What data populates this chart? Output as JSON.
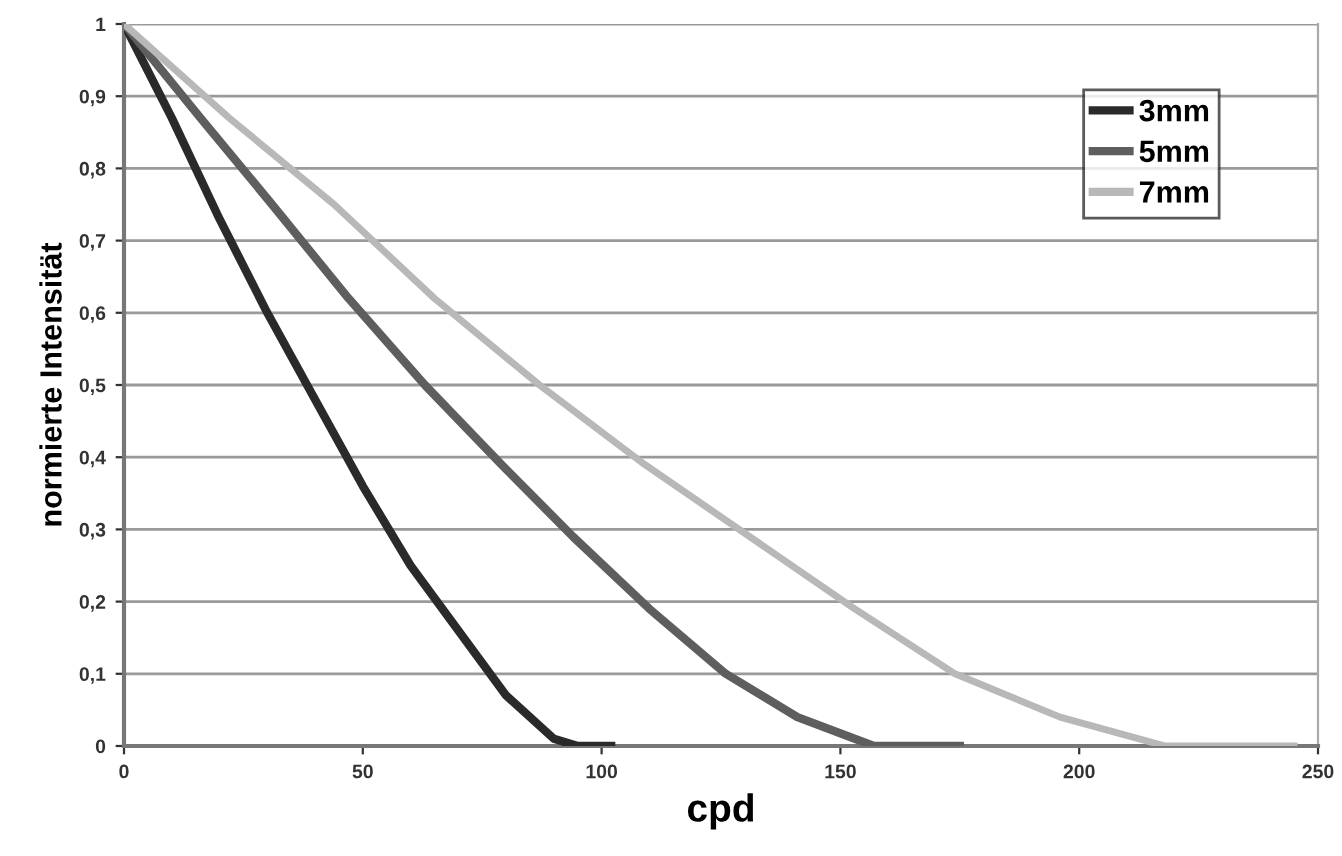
{
  "chart_data": {
    "type": "line",
    "xlabel": "cpd",
    "ylabel": "normierte Intensität",
    "xlim": [
      0,
      250
    ],
    "xticks": [
      0,
      50,
      100,
      150,
      200,
      250
    ],
    "ylim": [
      0,
      1
    ],
    "yticks": [
      0,
      {
        "value": 0.1,
        "label": "0,1"
      },
      {
        "value": 0.2,
        "label": "0,2"
      },
      {
        "value": 0.3,
        "label": "0,3"
      },
      {
        "value": 0.4,
        "label": "0,4"
      },
      {
        "value": 0.5,
        "label": "0,5"
      },
      {
        "value": 0.6,
        "label": "0,6"
      },
      {
        "value": 0.7,
        "label": "0,7"
      },
      {
        "value": 0.8,
        "label": "0,8"
      },
      {
        "value": 0.9,
        "label": "0,9"
      },
      1
    ],
    "grid": "y",
    "legend": "top right",
    "marker": "none",
    "line_style": "solid",
    "series": [
      {
        "name": "3mm",
        "color": "#2a2a2a",
        "x": [
          0,
          10,
          20,
          30,
          40,
          50,
          60,
          70,
          80,
          90,
          95,
          102
        ],
        "values": [
          1,
          0.87,
          0.73,
          0.6,
          0.48,
          0.36,
          0.25,
          0.16,
          0.07,
          0.01,
          0,
          0
        ]
      },
      {
        "name": "5mm",
        "color": "#5e5e5e",
        "x": [
          0,
          16,
          31,
          47,
          63,
          79,
          94,
          110,
          126,
          141,
          157,
          175
        ],
        "values": [
          1,
          0.87,
          0.75,
          0.62,
          0.5,
          0.39,
          0.29,
          0.19,
          0.1,
          0.04,
          0,
          0
        ]
      },
      {
        "name": "7mm",
        "color": "#b8b8b8",
        "x": [
          0,
          22,
          44,
          65,
          87,
          109,
          131,
          153,
          174,
          196,
          218,
          245
        ],
        "values": [
          1,
          0.87,
          0.75,
          0.62,
          0.5,
          0.39,
          0.29,
          0.19,
          0.1,
          0.04,
          0,
          0
        ]
      }
    ]
  }
}
